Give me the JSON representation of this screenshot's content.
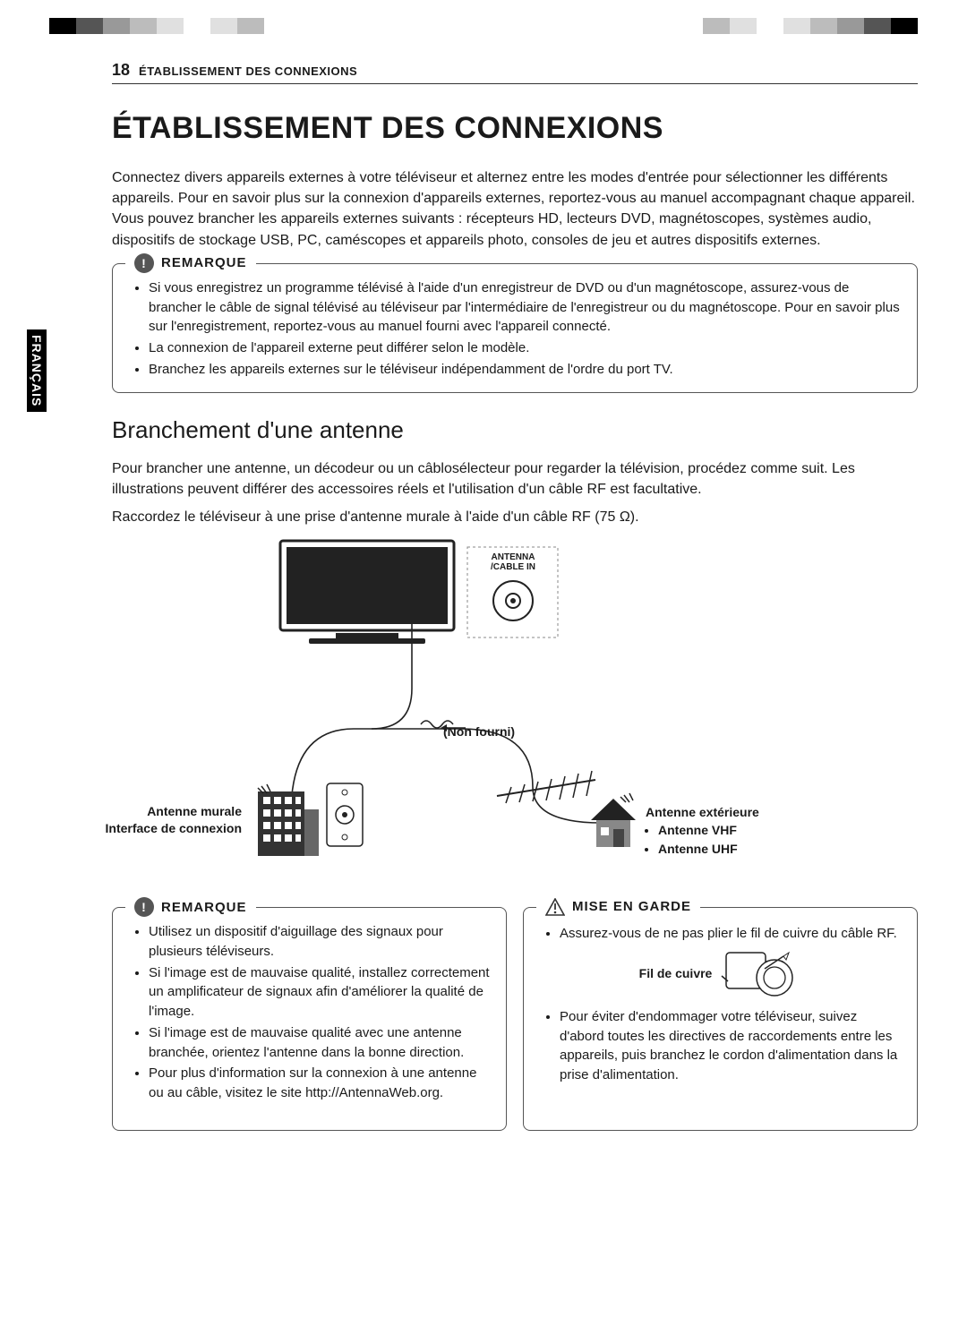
{
  "colorbars": {
    "left": [
      "#000000",
      "#555555",
      "#999999",
      "#bcbcbc",
      "#e0e0e0",
      "#ffffff",
      "#e0e0e0",
      "#bcbcbc",
      "#ffffff"
    ],
    "right": [
      "#ffffff",
      "#bcbcbc",
      "#e0e0e0",
      "#ffffff",
      "#e0e0e0",
      "#bcbcbc",
      "#999999",
      "#555555",
      "#000000"
    ]
  },
  "page": {
    "number": "18",
    "running_head": "ÉTABLISSEMENT DES CONNEXIONS",
    "side_tab": "FRANÇAIS"
  },
  "h1": "ÉTABLISSEMENT DES CONNEXIONS",
  "intro": "Connectez divers appareils externes à votre téléviseur et alternez entre les modes d'entrée pour sélectionner les différents appareils. Pour en savoir plus sur la connexion d'appareils externes, reportez-vous au manuel accompagnant chaque appareil. Vous pouvez brancher les appareils externes suivants : récepteurs HD, lecteurs DVD, magnétoscopes, systèmes audio, dispositifs de stockage USB, PC, caméscopes et appareils photo, consoles de jeu et autres dispositifs externes.",
  "note1": {
    "title": "REMARQUE",
    "items": [
      "Si vous enregistrez un programme télévisé à l'aide d'un enregistreur de DVD ou d'un magnétoscope, assurez-vous de brancher le câble de signal télévisé au téléviseur par l'intermédiaire de l'enregistreur ou du magnétoscope. Pour en savoir plus sur l'enregistrement, reportez-vous au manuel fourni avec l'appareil connecté.",
      "La connexion de l'appareil externe peut différer selon le modèle.",
      "Branchez les appareils externes sur le téléviseur indépendamment de l'ordre du port TV."
    ]
  },
  "h2": "Branchement d'une antenne",
  "p1": "Pour brancher une antenne, un décodeur ou un câblosélecteur pour regarder la télévision, procédez comme suit. Les illustrations peuvent différer des accessoires réels et l'utilisation d'un câble RF est facultative.",
  "p2": "Raccordez le téléviseur à une prise d'antenne murale à l'aide d'un câble RF (75 Ω).",
  "diagram": {
    "port_label_l1": "ANTENNA",
    "port_label_l2": "/CABLE IN",
    "not_provided": "(Non fourni)",
    "wall_label_l1": "Antenne murale",
    "wall_label_l2": "Interface de connexion",
    "outdoor_title": "Antenne extérieure",
    "outdoor_b1": "Antenne VHF",
    "outdoor_b2": "Antenne UHF"
  },
  "note2": {
    "title": "REMARQUE",
    "items": [
      "Utilisez un dispositif d'aiguillage des signaux pour plusieurs téléviseurs.",
      "Si l'image est de mauvaise qualité, installez correctement un amplificateur de signaux afin d'améliorer la qualité de l'image.",
      "Si l'image est de mauvaise qualité avec une antenne branchée, orientez l'antenne dans la bonne direction.",
      "Pour plus d'information sur la connexion à une antenne ou au câble, visitez le site http://AntennaWeb.org."
    ]
  },
  "warn": {
    "title": "MISE EN GARDE",
    "item1": "Assurez-vous de ne pas plier le fil de cuivre du câble RF.",
    "copper_label": "Fil de cuivre",
    "item2": "Pour éviter d'endommager votre téléviseur, suivez d'abord toutes les directives de raccordements entre les appareils, puis branchez le cordon d'alimentation dans la prise d'alimentation."
  },
  "colors": {
    "text": "#1a1a1a",
    "border": "#555555",
    "icon_bg": "#555555",
    "stroke": "#222222"
  }
}
